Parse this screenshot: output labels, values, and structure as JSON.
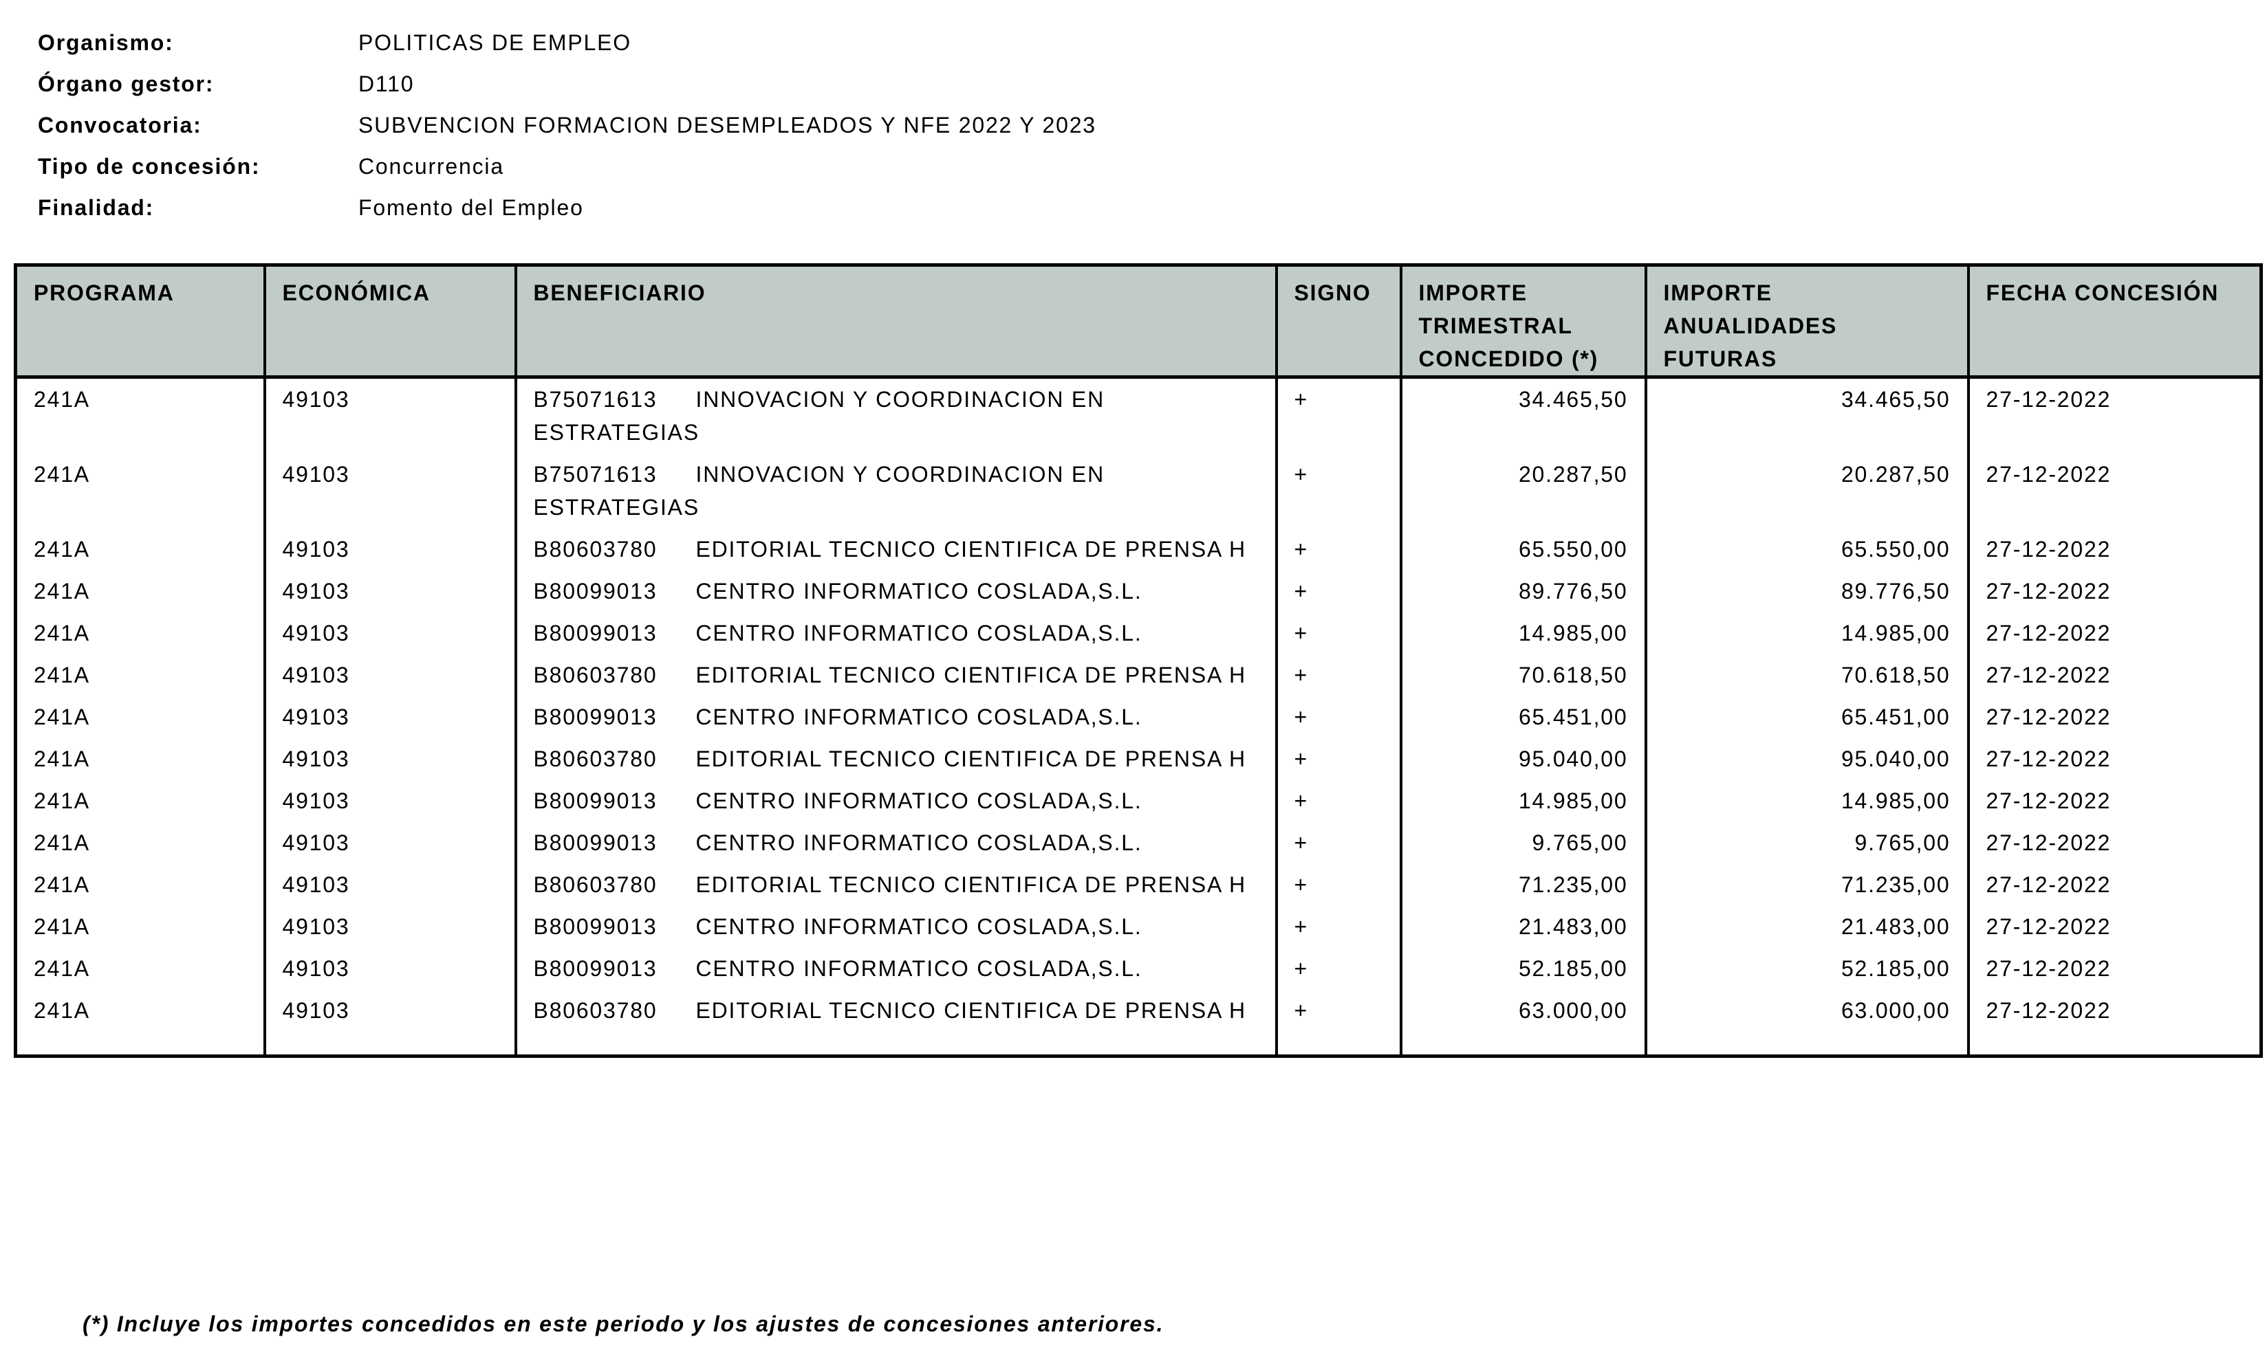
{
  "meta": {
    "fields": [
      {
        "label": "Organismo:",
        "value": "POLITICAS DE EMPLEO"
      },
      {
        "label": "Órgano gestor:",
        "value": "D110"
      },
      {
        "label": "Convocatoria:",
        "value": "SUBVENCION FORMACION DESEMPLEADOS Y NFE 2022 Y 2023"
      },
      {
        "label": "Tipo de concesión:",
        "value": "Concurrencia"
      },
      {
        "label": "Finalidad:",
        "value": "Fomento del Empleo"
      }
    ]
  },
  "table": {
    "headers": [
      "PROGRAMA",
      "ECONÓMICA",
      "BENEFICIARIO",
      "SIGNO",
      "IMPORTE TRIMESTRAL CONCEDIDO (*)",
      "IMPORTE ANUALIDADES FUTURAS",
      "FECHA CONCESIÓN"
    ],
    "header_bg": "#c1ccc9",
    "rows": [
      {
        "programa": "241A",
        "economica": "49103",
        "benef_code": "B75071613",
        "benef_name": "INNOVACION Y COORDINACION EN ESTRATEGIAS",
        "signo": "+",
        "importe_trimestral": "34.465,50",
        "importe_anualidades": "34.465,50",
        "fecha": "27-12-2022"
      },
      {
        "programa": "241A",
        "economica": "49103",
        "benef_code": "B75071613",
        "benef_name": "INNOVACION Y COORDINACION EN ESTRATEGIAS",
        "signo": "+",
        "importe_trimestral": "20.287,50",
        "importe_anualidades": "20.287,50",
        "fecha": "27-12-2022"
      },
      {
        "programa": "241A",
        "economica": "49103",
        "benef_code": "B80603780",
        "benef_name": "EDITORIAL TECNICO CIENTIFICA DE PRENSA H",
        "signo": "+",
        "importe_trimestral": "65.550,00",
        "importe_anualidades": "65.550,00",
        "fecha": "27-12-2022"
      },
      {
        "programa": "241A",
        "economica": "49103",
        "benef_code": "B80099013",
        "benef_name": "CENTRO INFORMATICO COSLADA,S.L.",
        "signo": "+",
        "importe_trimestral": "89.776,50",
        "importe_anualidades": "89.776,50",
        "fecha": "27-12-2022"
      },
      {
        "programa": "241A",
        "economica": "49103",
        "benef_code": "B80099013",
        "benef_name": "CENTRO INFORMATICO COSLADA,S.L.",
        "signo": "+",
        "importe_trimestral": "14.985,00",
        "importe_anualidades": "14.985,00",
        "fecha": "27-12-2022"
      },
      {
        "programa": "241A",
        "economica": "49103",
        "benef_code": "B80603780",
        "benef_name": "EDITORIAL TECNICO CIENTIFICA DE PRENSA H",
        "signo": "+",
        "importe_trimestral": "70.618,50",
        "importe_anualidades": "70.618,50",
        "fecha": "27-12-2022"
      },
      {
        "programa": "241A",
        "economica": "49103",
        "benef_code": "B80099013",
        "benef_name": "CENTRO INFORMATICO COSLADA,S.L.",
        "signo": "+",
        "importe_trimestral": "65.451,00",
        "importe_anualidades": "65.451,00",
        "fecha": "27-12-2022"
      },
      {
        "programa": "241A",
        "economica": "49103",
        "benef_code": "B80603780",
        "benef_name": "EDITORIAL TECNICO CIENTIFICA DE PRENSA H",
        "signo": "+",
        "importe_trimestral": "95.040,00",
        "importe_anualidades": "95.040,00",
        "fecha": "27-12-2022"
      },
      {
        "programa": "241A",
        "economica": "49103",
        "benef_code": "B80099013",
        "benef_name": "CENTRO INFORMATICO COSLADA,S.L.",
        "signo": "+",
        "importe_trimestral": "14.985,00",
        "importe_anualidades": "14.985,00",
        "fecha": "27-12-2022"
      },
      {
        "programa": "241A",
        "economica": "49103",
        "benef_code": "B80099013",
        "benef_name": "CENTRO INFORMATICO COSLADA,S.L.",
        "signo": "+",
        "importe_trimestral": "9.765,00",
        "importe_anualidades": "9.765,00",
        "fecha": "27-12-2022"
      },
      {
        "programa": "241A",
        "economica": "49103",
        "benef_code": "B80603780",
        "benef_name": "EDITORIAL TECNICO CIENTIFICA DE PRENSA H",
        "signo": "+",
        "importe_trimestral": "71.235,00",
        "importe_anualidades": "71.235,00",
        "fecha": "27-12-2022"
      },
      {
        "programa": "241A",
        "economica": "49103",
        "benef_code": "B80099013",
        "benef_name": "CENTRO INFORMATICO COSLADA,S.L.",
        "signo": "+",
        "importe_trimestral": "21.483,00",
        "importe_anualidades": "21.483,00",
        "fecha": "27-12-2022"
      },
      {
        "programa": "241A",
        "economica": "49103",
        "benef_code": "B80099013",
        "benef_name": "CENTRO INFORMATICO COSLADA,S.L.",
        "signo": "+",
        "importe_trimestral": "52.185,00",
        "importe_anualidades": "52.185,00",
        "fecha": "27-12-2022"
      },
      {
        "programa": "241A",
        "economica": "49103",
        "benef_code": "B80603780",
        "benef_name": "EDITORIAL TECNICO CIENTIFICA DE PRENSA H",
        "signo": "+",
        "importe_trimestral": "63.000,00",
        "importe_anualidades": "63.000,00",
        "fecha": "27-12-2022"
      }
    ]
  },
  "footnote": "(*) Incluye los importes concedidos en este periodo y los ajustes de concesiones anteriores."
}
